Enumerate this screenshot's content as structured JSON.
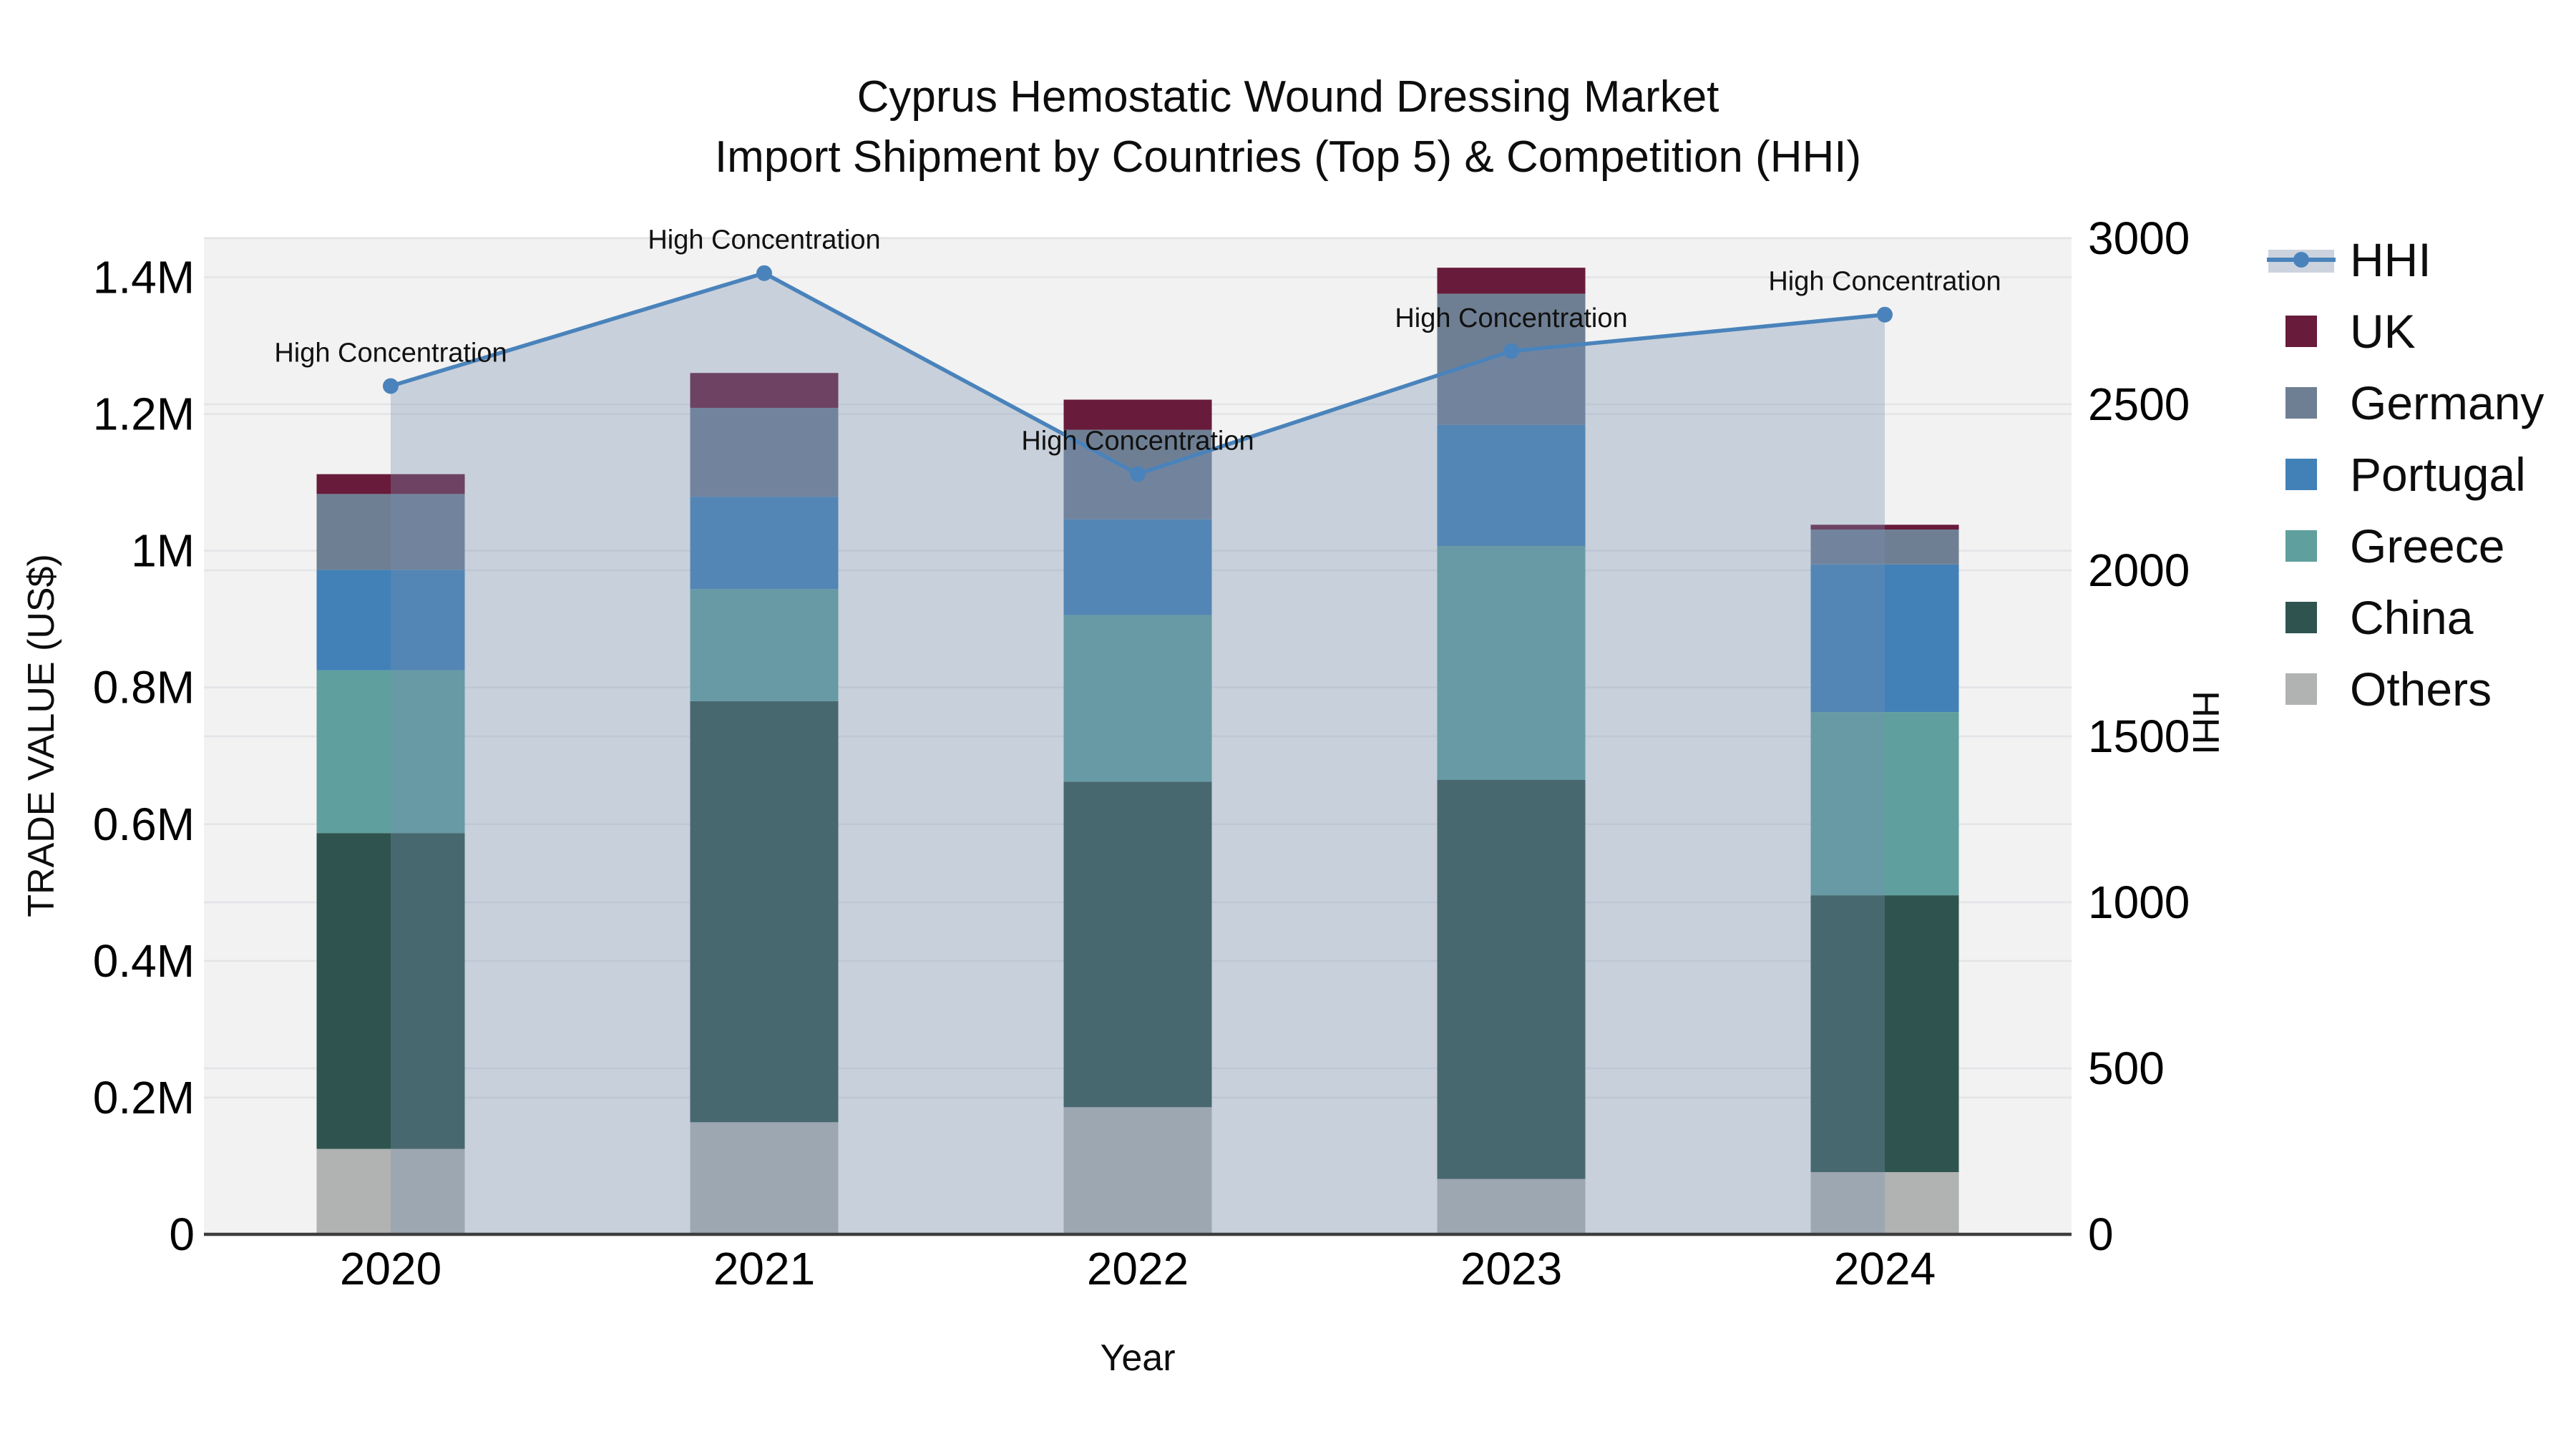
{
  "title": "Cyprus Hemostatic Wound Dressing Market",
  "subtitle": "Import Shipment by Countries (Top 5) & Competition (HHI)",
  "axes": {
    "x_title": "Year",
    "y_left_title": "TRADE VALUE (US$)",
    "y_right_title": "HHI",
    "y_left_tick_labels": [
      "0",
      "0.2M",
      "0.4M",
      "0.6M",
      "0.8M",
      "1M",
      "1.2M",
      "1.4M"
    ],
    "y_right_tick_labels": [
      "0",
      "500",
      "1000",
      "1500",
      "2000",
      "2500",
      "3000"
    ]
  },
  "colors": {
    "plot_bg": "#f2f2f2",
    "grid": "#e3e4e7",
    "axis_line": "#3d3d3d",
    "hhi_line": "#4a83bb",
    "hhi_area_fill": "rgba(121,143,175,0.34)",
    "hhi_legend_band": "#ccd3de",
    "text": "#0d0d0d"
  },
  "legend": {
    "items": [
      {
        "label": "HHI",
        "type": "line"
      },
      {
        "label": "UK",
        "type": "square",
        "color": "#681b3a"
      },
      {
        "label": "Germany",
        "type": "square",
        "color": "#6f7f93"
      },
      {
        "label": "Portugal",
        "type": "square",
        "color": "#4181b8"
      },
      {
        "label": "Greece",
        "type": "square",
        "color": "#5fa09e"
      },
      {
        "label": "China",
        "type": "square",
        "color": "#2f544f"
      },
      {
        "label": "Others",
        "type": "square",
        "color": "#b0b3b2"
      }
    ]
  },
  "chart_data": {
    "type": "combo: stacked bar (left axis) + line with area fill (right axis)",
    "categories": [
      "2020",
      "2021",
      "2022",
      "2023",
      "2024"
    ],
    "x_label": "Year",
    "stack_unit": "US$ millions, left axis TRADE VALUE (US$)",
    "stack_order_bottom_to_top": [
      "Others",
      "China",
      "Greece",
      "Portugal",
      "Germany",
      "UK"
    ],
    "series": [
      {
        "name": "Others",
        "color": "#b0b3b2",
        "values": [
          0.125,
          0.164,
          0.186,
          0.081,
          0.091
        ]
      },
      {
        "name": "China",
        "color": "#2f544f",
        "values": [
          0.462,
          0.616,
          0.476,
          0.584,
          0.405
        ]
      },
      {
        "name": "Greece",
        "color": "#5fa09e",
        "values": [
          0.238,
          0.164,
          0.244,
          0.342,
          0.268
        ]
      },
      {
        "name": "Portugal",
        "color": "#4181b8",
        "values": [
          0.147,
          0.135,
          0.14,
          0.177,
          0.216
        ]
      },
      {
        "name": "Germany",
        "color": "#6f7f93",
        "values": [
          0.111,
          0.13,
          0.131,
          0.192,
          0.051
        ]
      },
      {
        "name": "UK",
        "color": "#681b3a",
        "values": [
          0.029,
          0.051,
          0.044,
          0.038,
          0.007
        ]
      }
    ],
    "stack_totals_millions": [
      1.112,
      1.26,
      1.221,
      1.414,
      1.038
    ],
    "line_series": {
      "name": "HHI",
      "axis": "right",
      "values": [
        2555,
        2895,
        2290,
        2660,
        2770
      ],
      "point_annotations": [
        "High Concentration",
        "High Concentration",
        "High Concentration",
        "High Concentration",
        "High Concentration"
      ]
    },
    "y_left_axis": {
      "title": "TRADE VALUE (US$)",
      "ticks_millions": [
        0,
        0.2,
        0.4,
        0.6,
        0.8,
        1.0,
        1.2,
        1.4
      ],
      "range_millions": [
        0,
        1.459
      ]
    },
    "y_right_axis": {
      "title": "HHI",
      "ticks": [
        0,
        500,
        1000,
        1500,
        2000,
        2500,
        3000
      ],
      "range": [
        0,
        3004
      ]
    },
    "grid": true,
    "legend_position": "right"
  }
}
